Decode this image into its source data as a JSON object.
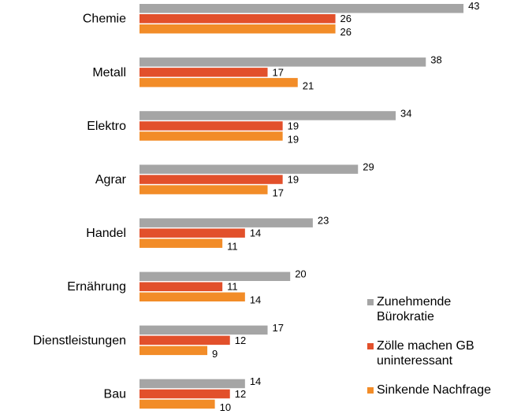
{
  "chart_data": {
    "type": "bar",
    "orientation": "horizontal",
    "categories": [
      "Chemie",
      "Metall",
      "Elektro",
      "Agrar",
      "Handel",
      "Ernährung",
      "Dienstleistungen",
      "Bau"
    ],
    "series": [
      {
        "name": "Zunehmende Bürokratie",
        "color": "#a5a5a5",
        "values": [
          43,
          38,
          34,
          29,
          23,
          20,
          17,
          14
        ]
      },
      {
        "name": "Zölle machen GB uninteressant",
        "color": "#e2502b",
        "values": [
          26,
          17,
          19,
          19,
          14,
          11,
          12,
          12
        ]
      },
      {
        "name": "Sinkende Nachfrage",
        "color": "#f28c28",
        "values": [
          26,
          21,
          19,
          17,
          11,
          14,
          9,
          10
        ]
      }
    ]
  }
}
